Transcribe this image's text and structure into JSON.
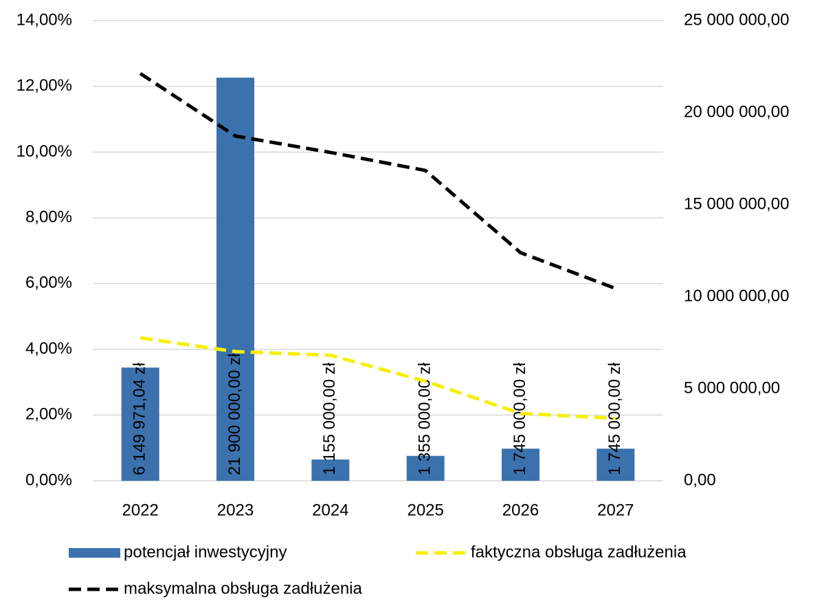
{
  "chart_data": {
    "type": "combo",
    "categories": [
      "2022",
      "2023",
      "2024",
      "2025",
      "2026",
      "2027"
    ],
    "series": [
      {
        "name": "potencjał inwestycyjny",
        "type": "bar",
        "axis": "y2",
        "color": "#3b72ae",
        "values": [
          6149971.04,
          21900000,
          1155000,
          1355000,
          1745000,
          1745000
        ],
        "value_labels": [
          "6 149 971,04 zł",
          "21 900 000,00 zł",
          "1 155 000,00 zł",
          "1 355 000,00 zł",
          "1 745 000,00 zł",
          "1 745 000,00 zł"
        ]
      },
      {
        "name": "faktyczna obsługa zadłużenia",
        "type": "line",
        "axis": "y",
        "color": "#f5f000",
        "dashed": true,
        "values": [
          4.35,
          3.93,
          3.82,
          3.03,
          2.05,
          1.9
        ]
      },
      {
        "name": "maksymalna obsługa zadłużenia",
        "type": "line",
        "axis": "y",
        "color": "#000000",
        "dashed": true,
        "values": [
          12.39,
          10.49,
          9.99,
          9.44,
          6.94,
          5.85
        ]
      }
    ],
    "ylim": [
      0,
      14
    ],
    "yticks": [
      {
        "value": 0,
        "label": "0,00%"
      },
      {
        "value": 2,
        "label": "2,00%"
      },
      {
        "value": 4,
        "label": "4,00%"
      },
      {
        "value": 6,
        "label": "6,00%"
      },
      {
        "value": 8,
        "label": "8,00%"
      },
      {
        "value": 10,
        "label": "10,00%"
      },
      {
        "value": 12,
        "label": "12,00%"
      },
      {
        "value": 14,
        "label": "14,00%"
      }
    ],
    "y2lim": [
      0,
      25000000
    ],
    "y2ticks": [
      {
        "value": 0,
        "label": "0,00"
      },
      {
        "value": 5000000,
        "label": "5 000 000,00"
      },
      {
        "value": 10000000,
        "label": "10 000 000,00"
      },
      {
        "value": 15000000,
        "label": "15 000 000,00"
      },
      {
        "value": 20000000,
        "label": "20 000 000,00"
      },
      {
        "value": 25000000,
        "label": "25 000 000,00"
      }
    ],
    "grid": true
  }
}
